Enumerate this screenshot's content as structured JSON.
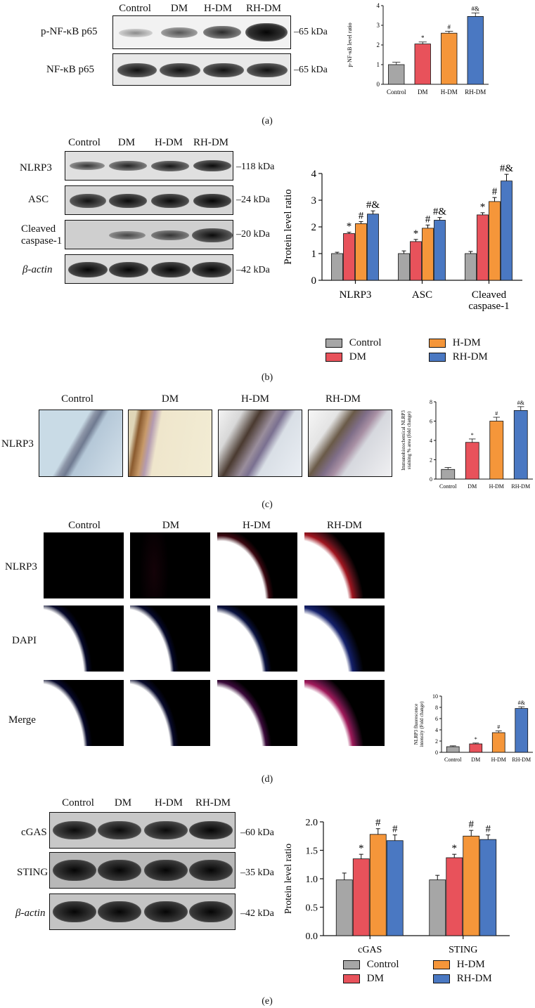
{
  "groups": [
    "Control",
    "DM",
    "H-DM",
    "RH-DM"
  ],
  "colors": {
    "Control": "#a6a6a6",
    "DM": "#e8525b",
    "H-DM": "#f5963a",
    "RH-DM": "#4a78c2"
  },
  "panel_a": {
    "label": "(a)",
    "rows": [
      {
        "name": "p-NF-κB p65",
        "kda": "–65 kDa"
      },
      {
        "name": "NF-κB p65",
        "kda": "–65 kDa"
      }
    ]
  },
  "panel_b": {
    "label": "(b)",
    "rows": [
      {
        "name": "NLRP3",
        "kda": "–118 kDa"
      },
      {
        "name": "ASC",
        "kda": "–24 kDa"
      },
      {
        "name": "Cleaved caspase-1",
        "kda": "–20 kDa"
      },
      {
        "name": "β-actin",
        "kda": "–42 kDa"
      }
    ]
  },
  "panel_c": {
    "label": "(c)",
    "row_label": "NLRP3"
  },
  "panel_d": {
    "label": "(d)",
    "rows": [
      "NLRP3",
      "DAPI",
      "Merge"
    ]
  },
  "panel_e": {
    "label": "(e)",
    "rows": [
      {
        "name": "cGAS",
        "kda": "–60 kDa"
      },
      {
        "name": "STING",
        "kda": "–35 kDa"
      },
      {
        "name": "β-actin",
        "kda": "–42 kDa"
      }
    ]
  },
  "legend": [
    "Control",
    "DM",
    "H-DM",
    "RH-DM"
  ],
  "chart_data": [
    {
      "id": "a",
      "type": "bar",
      "categories": [
        "Control",
        "DM",
        "H-DM",
        "RH-DM"
      ],
      "values": [
        1.0,
        2.05,
        2.6,
        3.45
      ],
      "errors": [
        0.12,
        0.1,
        0.1,
        0.18
      ],
      "marks": [
        "",
        "*",
        "#",
        "#&"
      ],
      "ylabel": "p-NF-κB level ratio",
      "ylim": [
        0,
        4
      ],
      "yticks": [
        0,
        1,
        2,
        3,
        4
      ]
    },
    {
      "id": "b",
      "type": "bar",
      "categories": [
        "NLRP3",
        "ASC",
        "Cleaved caspase-1"
      ],
      "series": [
        {
          "name": "Control",
          "values": [
            1.0,
            1.0,
            1.0
          ],
          "errors": [
            0.05,
            0.1,
            0.08
          ],
          "marks": [
            "",
            "",
            ""
          ]
        },
        {
          "name": "DM",
          "values": [
            1.75,
            1.45,
            2.45
          ],
          "errors": [
            0.05,
            0.08,
            0.08
          ],
          "marks": [
            "*",
            "*",
            "*"
          ]
        },
        {
          "name": "H-DM",
          "values": [
            2.12,
            1.95,
            2.95
          ],
          "errors": [
            0.08,
            0.12,
            0.15
          ],
          "marks": [
            "#",
            "#",
            "#"
          ]
        },
        {
          "name": "RH-DM",
          "values": [
            2.48,
            2.25,
            3.72
          ],
          "errors": [
            0.12,
            0.1,
            0.25
          ],
          "marks": [
            "#&",
            "#&",
            "#&"
          ]
        }
      ],
      "ylabel": "Protein level ratio",
      "ylim": [
        0,
        4
      ],
      "yticks": [
        0,
        1,
        2,
        3,
        4
      ]
    },
    {
      "id": "c",
      "type": "bar",
      "categories": [
        "Control",
        "DM",
        "H-DM",
        "RH-DM"
      ],
      "values": [
        1.0,
        3.8,
        6.0,
        7.1
      ],
      "errors": [
        0.2,
        0.35,
        0.4,
        0.4
      ],
      "marks": [
        "",
        "*",
        "#",
        "#&"
      ],
      "ylabel": "Immunohistochemical NLRP3 staining % area (fold change)",
      "ylim": [
        0,
        8
      ],
      "yticks": [
        0,
        2,
        4,
        6,
        8
      ]
    },
    {
      "id": "d",
      "type": "bar",
      "categories": [
        "Control",
        "DM",
        "H-DM",
        "RH-DM"
      ],
      "values": [
        1.0,
        1.5,
        3.5,
        7.8
      ],
      "errors": [
        0.15,
        0.15,
        0.3,
        0.3
      ],
      "marks": [
        "",
        "*",
        "#",
        "#&"
      ],
      "ylabel": "NLRP3 fluorescence intensity (Fold change)",
      "ylim": [
        0,
        10
      ],
      "yticks": [
        0,
        2,
        4,
        6,
        8,
        10
      ]
    },
    {
      "id": "e",
      "type": "bar",
      "categories": [
        "cGAS",
        "STING"
      ],
      "series": [
        {
          "name": "Control",
          "values": [
            0.98,
            0.98
          ],
          "errors": [
            0.12,
            0.08
          ],
          "marks": [
            "",
            ""
          ]
        },
        {
          "name": "DM",
          "values": [
            1.35,
            1.37
          ],
          "errors": [
            0.08,
            0.06
          ],
          "marks": [
            "*",
            "*"
          ]
        },
        {
          "name": "H-DM",
          "values": [
            1.78,
            1.75
          ],
          "errors": [
            0.1,
            0.1
          ],
          "marks": [
            "#",
            "#"
          ]
        },
        {
          "name": "RH-DM",
          "values": [
            1.67,
            1.69
          ],
          "errors": [
            0.1,
            0.08
          ],
          "marks": [
            "#",
            "#"
          ]
        }
      ],
      "ylabel": "Protein level ratio",
      "ylim": [
        0,
        2.0
      ],
      "yticks": [
        "0.0",
        "0.5",
        "1.0",
        "1.5",
        "2.0"
      ]
    }
  ]
}
